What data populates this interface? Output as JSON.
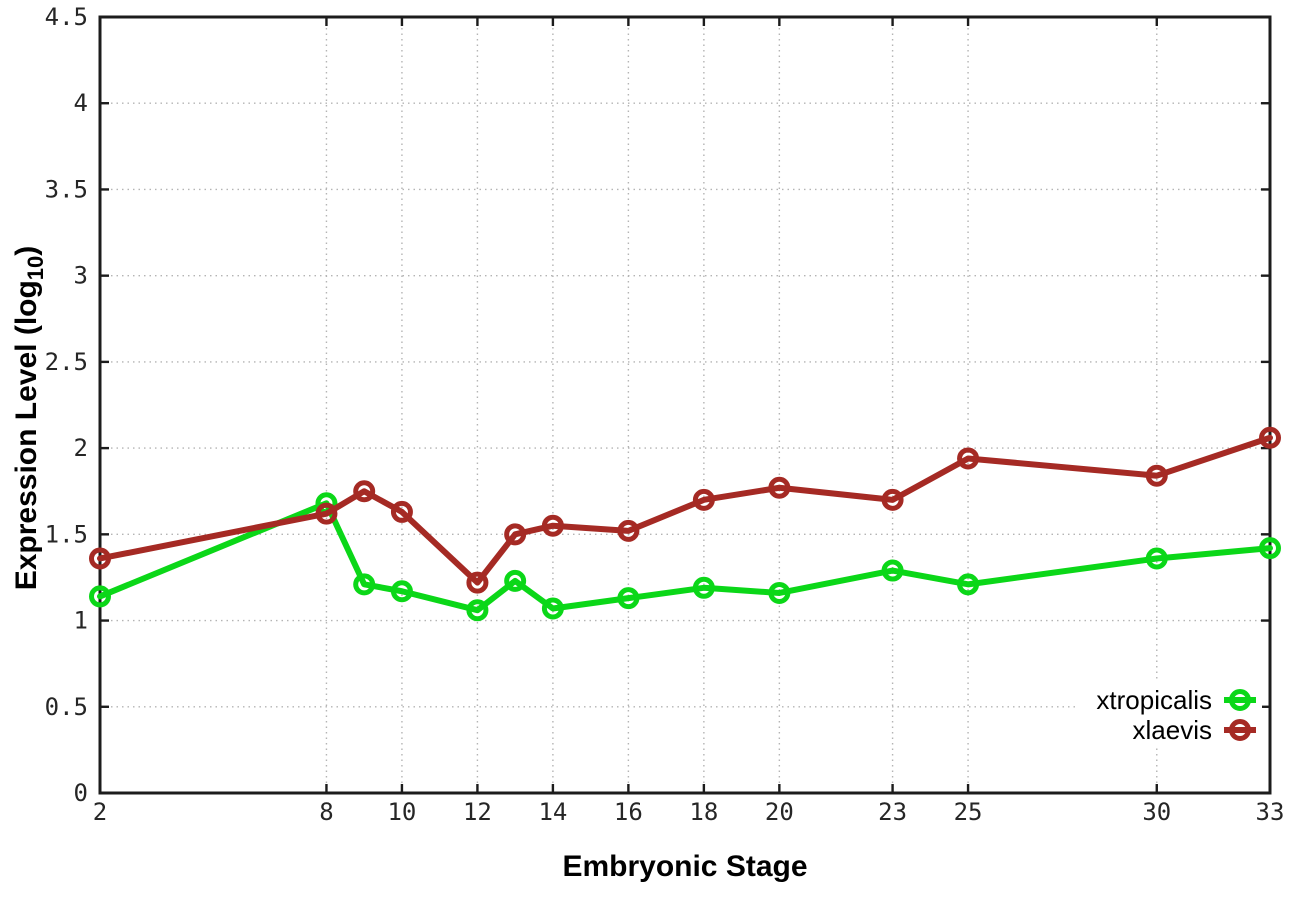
{
  "chart_data": {
    "type": "line",
    "title": "",
    "xlabel": "Embryonic Stage",
    "ylabel": "Expression Level (log10)",
    "ylabel_parts": {
      "prefix": "Expression Level (log",
      "sub": "10",
      "suffix": ")"
    },
    "x_range": [
      2,
      33
    ],
    "y_range": [
      0,
      4.5
    ],
    "xticks": [
      2,
      8,
      10,
      12,
      14,
      16,
      18,
      20,
      23,
      25,
      30,
      33
    ],
    "yticks": [
      0,
      0.5,
      1,
      1.5,
      2,
      2.5,
      3,
      3.5,
      4,
      4.5
    ],
    "grid": true,
    "grid_style": "dotted",
    "legend_position": "bottom-right",
    "x": [
      2,
      8,
      9,
      10,
      12,
      13,
      14,
      16,
      18,
      20,
      23,
      25,
      30,
      33
    ],
    "series": [
      {
        "name": "xtropicalis",
        "color": "#0bd718",
        "values": [
          1.14,
          1.68,
          1.21,
          1.17,
          1.06,
          1.23,
          1.07,
          1.13,
          1.19,
          1.16,
          1.29,
          1.21,
          1.36,
          1.42
        ]
      },
      {
        "name": "xlaevis",
        "color": "#a52a24",
        "values": [
          1.36,
          1.62,
          1.75,
          1.63,
          1.22,
          1.5,
          1.55,
          1.52,
          1.7,
          1.77,
          1.7,
          1.94,
          1.84,
          2.06
        ]
      }
    ]
  }
}
